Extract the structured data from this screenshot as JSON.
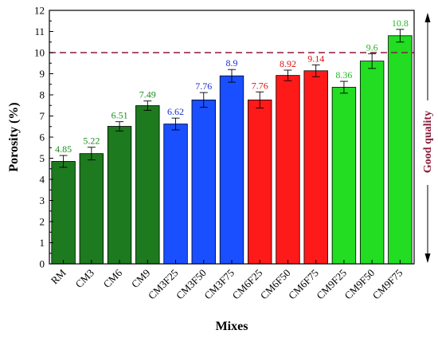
{
  "chart_data": {
    "type": "bar",
    "title": "",
    "xlabel": "Mixes",
    "ylabel": "Porosity (%)",
    "ylim": [
      0,
      12
    ],
    "yticks": [
      0,
      1,
      2,
      3,
      4,
      5,
      6,
      7,
      8,
      9,
      10,
      11,
      12
    ],
    "categories": [
      "RM",
      "CM3",
      "CM6",
      "CM9",
      "CM3F25",
      "CM3F50",
      "CM3F75",
      "CM6F25",
      "CM6F50",
      "CM6F75",
      "CM9F25",
      "CM9F50",
      "CM9F75"
    ],
    "values": [
      4.85,
      5.22,
      6.51,
      7.49,
      6.62,
      7.76,
      8.9,
      7.76,
      8.92,
      9.14,
      8.36,
      9.6,
      10.8
    ],
    "value_labels": [
      "4.85",
      "5.22",
      "6.51",
      "7.49",
      "6.62",
      "7.76",
      "8.9",
      "7.76",
      "8.92",
      "9.14",
      "8.36",
      "9.6",
      "10.8"
    ],
    "errors": [
      0.28,
      0.3,
      0.22,
      0.22,
      0.28,
      0.35,
      0.3,
      0.38,
      0.25,
      0.28,
      0.28,
      0.35,
      0.3
    ],
    "bar_colors": [
      "#1e7a1e",
      "#1e7a1e",
      "#1e7a1e",
      "#1e7a1e",
      "#1a4fff",
      "#1a4fff",
      "#1a4fff",
      "#ff1a1a",
      "#ff1a1a",
      "#ff1a1a",
      "#22dd22",
      "#22dd22",
      "#22dd22"
    ],
    "label_colors": [
      "#1e8c1e",
      "#1e8c1e",
      "#1e8c1e",
      "#1e8c1e",
      "#1a2fcc",
      "#1a2fcc",
      "#1a2fcc",
      "#e01010",
      "#e01010",
      "#e01010",
      "#22b822",
      "#22b822",
      "#22b822"
    ],
    "threshold": {
      "value": 10,
      "color": "#8b1a3a",
      "style": "dashed"
    },
    "side_annotation": {
      "text": "Good quality",
      "color": "#8b1a3a"
    },
    "grid": false,
    "legend": "none"
  }
}
